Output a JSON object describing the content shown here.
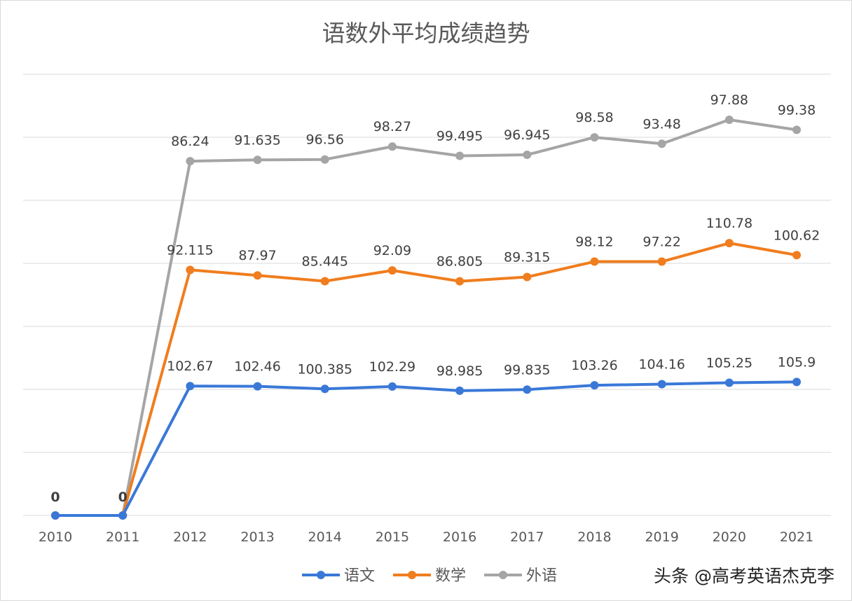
{
  "chart_data": {
    "type": "line",
    "stacked": true,
    "title": "语数外平均成绩趋势",
    "xlabel": "",
    "ylabel": "",
    "categories": [
      "2010",
      "2011",
      "2012",
      "2013",
      "2014",
      "2015",
      "2016",
      "2017",
      "2018",
      "2019",
      "2020",
      "2021"
    ],
    "ylim": [
      0,
      350
    ],
    "y_gridline_step": 50,
    "y_tick_labels_shown": false,
    "grid": true,
    "legend": "bottom",
    "series": [
      {
        "name": "语文",
        "color": "#3a78d8",
        "values": [
          0,
          0,
          102.67,
          102.46,
          100.385,
          102.29,
          98.985,
          99.835,
          103.26,
          104.16,
          105.25,
          105.9
        ]
      },
      {
        "name": "数学",
        "color": "#f07d1e",
        "values": [
          0,
          0,
          92.115,
          87.97,
          85.445,
          92.09,
          86.805,
          89.315,
          98.12,
          97.22,
          110.78,
          100.62
        ]
      },
      {
        "name": "外语",
        "color": "#a5a5a5",
        "values": [
          0,
          0,
          86.24,
          91.635,
          96.56,
          98.27,
          99.495,
          96.945,
          98.58,
          93.48,
          97.88,
          99.38
        ]
      }
    ]
  },
  "watermark": "头条 @高考英语杰克李"
}
